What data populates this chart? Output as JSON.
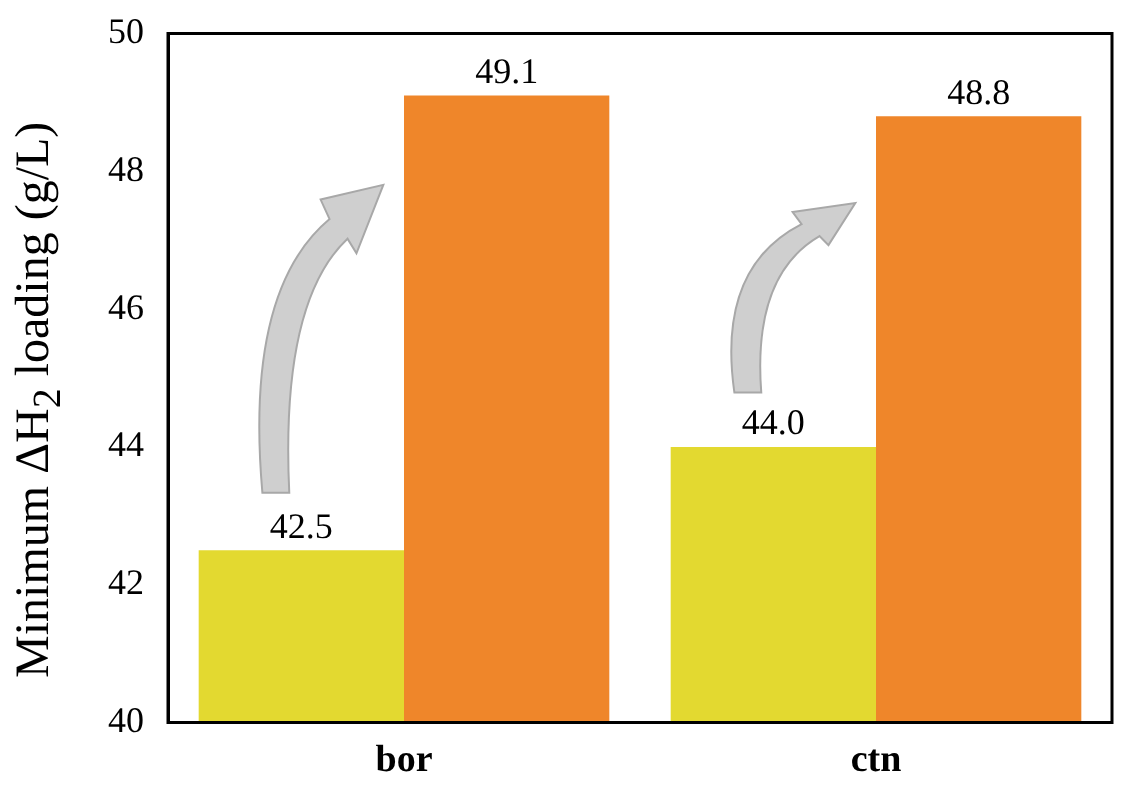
{
  "chart_data": {
    "type": "bar",
    "ylabel": "Minimum ΔH$_{2}$ loading (g/L)",
    "categories": [
      "bor",
      "ctn"
    ],
    "series": [
      {
        "color": "#e3d930",
        "values": [
          42.5,
          44.0
        ],
        "value_labels": [
          "42.5",
          "44.0"
        ]
      },
      {
        "color": "#ef862a",
        "values": [
          49.1,
          48.8
        ],
        "value_labels": [
          "49.1",
          "48.8"
        ]
      }
    ],
    "ylim": [
      40,
      50
    ],
    "yticks": [
      40,
      42,
      44,
      46,
      48,
      50
    ],
    "grid": false,
    "legend": false
  }
}
